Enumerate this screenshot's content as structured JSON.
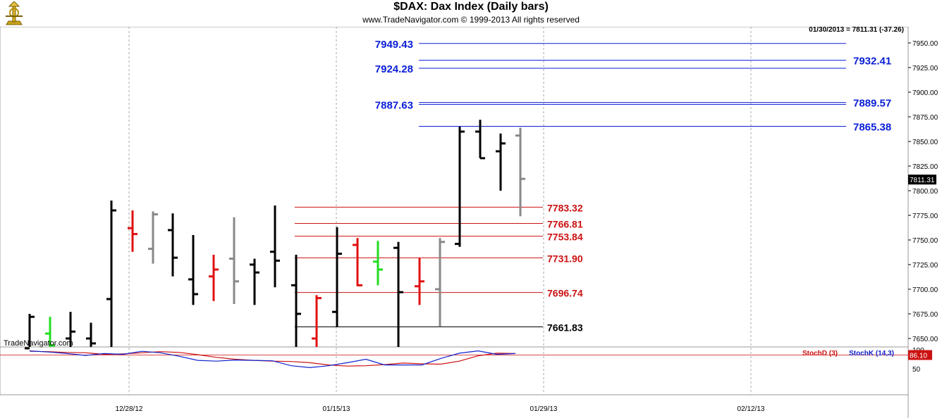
{
  "header": {
    "title": "$DAX:  Dax Index  (Daily bars)",
    "subtitle": "www.TradeNavigator.com © 1999-2013 All rights reserved"
  },
  "quote": "01/30/2013 = 7811.31 (-37.26)",
  "last_price_tag": "7811.31",
  "watermark": "TradeNavigator.com",
  "chart_data": [
    {
      "type": "ohlc",
      "title": "$DAX:  Dax Index  (Daily bars)",
      "x_ticks": [
        "12/28/12",
        "01/15/13",
        "01/29/13",
        "02/12/13"
      ],
      "y_ticks": [
        "7650.00",
        "7675.00",
        "7700.00",
        "7725.00",
        "7750.00",
        "7775.00",
        "7800.00",
        "7825.00",
        "7850.00",
        "7875.00",
        "7900.00",
        "7925.00",
        "7950.00"
      ],
      "ylim": [
        7640,
        7960
      ],
      "grid": true,
      "bars": [
        {
          "date": "12/18/12",
          "open": 7640,
          "high": 7675,
          "low": 7640,
          "close": 7672,
          "color": "#000000"
        },
        {
          "date": "12/19/12",
          "open": 7655,
          "high": 7672,
          "low": 7640,
          "close": 7643,
          "color": "#22dd22"
        },
        {
          "date": "12/20/12",
          "open": 7650,
          "high": 7677,
          "low": 7640,
          "close": 7657,
          "color": "#000000"
        },
        {
          "date": "12/21/12",
          "open": 7650,
          "high": 7666,
          "low": 7640,
          "close": 7645,
          "color": "#000000"
        },
        {
          "date": "12/27/12",
          "open": 7690,
          "high": 7790,
          "low": 7640,
          "close": 7780,
          "color": "#000000"
        },
        {
          "date": "12/28/12",
          "open": 7762,
          "high": 7780,
          "low": 7738,
          "close": 7756,
          "color": "#e01010"
        },
        {
          "date": "01/02/13",
          "open": 7741,
          "high": 7779,
          "low": 7726,
          "close": 7776,
          "color": "#888888"
        },
        {
          "date": "01/03/13",
          "open": 7760,
          "high": 7777,
          "low": 7713,
          "close": 7732,
          "color": "#000000"
        },
        {
          "date": "01/04/13",
          "open": 7710,
          "high": 7755,
          "low": 7684,
          "close": 7695,
          "color": "#000000"
        },
        {
          "date": "01/07/13",
          "open": 7713,
          "high": 7735,
          "low": 7688,
          "close": 7720,
          "color": "#e01010"
        },
        {
          "date": "01/08/13",
          "open": 7731,
          "high": 7773,
          "low": 7685,
          "close": 7708,
          "color": "#888888"
        },
        {
          "date": "01/09/13",
          "open": 7725,
          "high": 7731,
          "low": 7684,
          "close": 7717,
          "color": "#000000"
        },
        {
          "date": "01/10/13",
          "open": 7738,
          "high": 7785,
          "low": 7702,
          "close": 7729,
          "color": "#000000"
        },
        {
          "date": "01/11/13",
          "open": 7704,
          "high": 7735,
          "low": 7640,
          "close": 7675,
          "color": "#000000"
        },
        {
          "date": "01/14/13",
          "open": 7650,
          "high": 7694,
          "low": 7640,
          "close": 7691,
          "color": "#e01010"
        },
        {
          "date": "01/15/13",
          "open": 7677,
          "high": 7763,
          "low": 7662,
          "close": 7736,
          "color": "#000000"
        },
        {
          "date": "01/16/13",
          "open": 7745,
          "high": 7752,
          "low": 7703,
          "close": 7704,
          "color": "#e01010"
        },
        {
          "date": "01/17/13",
          "open": 7728,
          "high": 7749,
          "low": 7704,
          "close": 7720,
          "color": "#22dd22"
        },
        {
          "date": "01/18/13",
          "open": 7742,
          "high": 7748,
          "low": 7640,
          "close": 7697,
          "color": "#000000"
        },
        {
          "date": "01/21/13",
          "open": 7703,
          "high": 7732,
          "low": 7684,
          "close": 7708,
          "color": "#e01010"
        },
        {
          "date": "01/22/13",
          "open": 7700,
          "high": 7752,
          "low": 7662,
          "close": 7748,
          "color": "#888888"
        },
        {
          "date": "01/23/13",
          "open": 7746,
          "high": 7865,
          "low": 7743,
          "close": 7860,
          "color": "#000000"
        },
        {
          "date": "01/24/13",
          "open": 7860,
          "high": 7872,
          "low": 7833,
          "close": 7833,
          "color": "#000000"
        },
        {
          "date": "01/25/13",
          "open": 7840,
          "high": 7858,
          "low": 7800,
          "close": 7848,
          "color": "#000000"
        },
        {
          "date": "01/28/13",
          "open": 7856,
          "high": 7864,
          "low": 7774,
          "close": 7812,
          "color": "#888888"
        }
      ],
      "levels": [
        {
          "value": 7949.43,
          "label": "7949.43",
          "color": "#0a1fd6",
          "label_side": "left"
        },
        {
          "value": 7932.41,
          "label": "7932.41",
          "color": "#0a1fd6",
          "label_side": "right"
        },
        {
          "value": 7924.28,
          "label": "7924.28",
          "color": "#0a1fd6",
          "label_side": "left"
        },
        {
          "value": 7889.57,
          "label": "7889.57",
          "color": "#0a1fd6",
          "label_side": "right"
        },
        {
          "value": 7887.63,
          "label": "7887.63",
          "color": "#0a1fd6",
          "label_side": "left"
        },
        {
          "value": 7865.38,
          "label": "7865.38",
          "color": "#0a1fd6",
          "label_side": "right"
        },
        {
          "value": 7783.32,
          "label": "7783.32",
          "color": "#cc1111",
          "label_side": "right"
        },
        {
          "value": 7766.81,
          "label": "7766.81",
          "color": "#cc1111",
          "label_side": "right"
        },
        {
          "value": 7753.84,
          "label": "7753.84",
          "color": "#cc1111",
          "label_side": "right"
        },
        {
          "value": 7731.9,
          "label": "7731.90",
          "color": "#cc1111",
          "label_side": "right"
        },
        {
          "value": 7696.74,
          "label": "7696.74",
          "color": "#cc1111",
          "label_side": "right"
        },
        {
          "value": 7661.83,
          "label": "7661.83",
          "color": "#000000",
          "label_side": "right"
        }
      ]
    },
    {
      "type": "line",
      "ylim": [
        0,
        100
      ],
      "y_ticks": [
        "100",
        "50"
      ],
      "value_tag": "86.10",
      "series": [
        {
          "name": "StochD (3)",
          "color": "#cc1111",
          "values": [
            96,
            95,
            93,
            92,
            88,
            89,
            92,
            95,
            93,
            87,
            80,
            75,
            72,
            70,
            69,
            66,
            60,
            57,
            58,
            61,
            65,
            63,
            62,
            70,
            84,
            91,
            90
          ]
        },
        {
          "name": "StochK (14,3)",
          "color": "#1122cc",
          "values": [
            97,
            94,
            90,
            85,
            90,
            88,
            96,
            92,
            83,
            72,
            70,
            73,
            72,
            71,
            58,
            53,
            58,
            66,
            75,
            60,
            60,
            60,
            77,
            91,
            97,
            88,
            90
          ]
        }
      ]
    }
  ]
}
